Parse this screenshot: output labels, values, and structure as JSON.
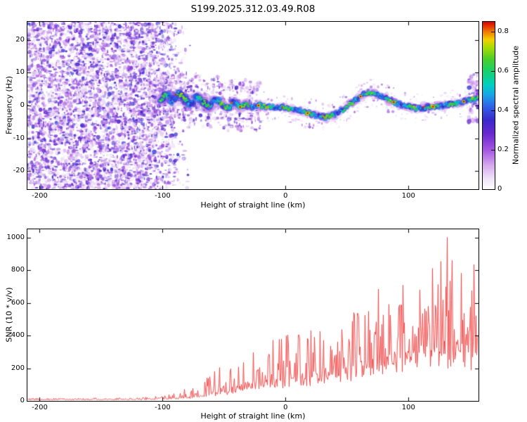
{
  "title": "S199.2025.312.03.49.R08",
  "colors": {
    "background": "#ffffff",
    "axis": "#000000",
    "snr_line": "#f13c3c"
  },
  "chart_data": [
    {
      "type": "heatmap",
      "title": "S199.2025.312.03.49.R08",
      "xlabel": "Height of straight line (km)",
      "ylabel": "Frequency (Hz)",
      "xlim": [
        -210,
        157
      ],
      "ylim": [
        -25.5,
        25.5
      ],
      "xticks": [
        {
          "v": -200,
          "label": "-200"
        },
        {
          "v": -100,
          "label": "-100"
        },
        {
          "v": 0,
          "label": "0"
        },
        {
          "v": 100,
          "label": "100"
        }
      ],
      "yticks": [
        {
          "v": 20,
          "label": "20"
        },
        {
          "v": 10,
          "label": "10"
        },
        {
          "v": 0,
          "label": "0"
        },
        {
          "v": -10,
          "label": "-10"
        },
        {
          "v": -20,
          "label": "-20"
        }
      ],
      "colorbar": {
        "label": "Normalized spectral amplitude",
        "range": [
          0,
          0.85
        ],
        "ticks": [
          {
            "v": 0,
            "label": "0"
          },
          {
            "v": 0.2,
            "label": "0.2"
          },
          {
            "v": 0.4,
            "label": "0.4"
          },
          {
            "v": 0.6,
            "label": "0.6"
          },
          {
            "v": 0.8,
            "label": "0.8"
          }
        ],
        "stops": [
          {
            "v": 0.0,
            "c": "#ffffff"
          },
          {
            "v": 0.05,
            "c": "#f0e6f8"
          },
          {
            "v": 0.12,
            "c": "#d5aaee"
          },
          {
            "v": 0.2,
            "c": "#a555e0"
          },
          {
            "v": 0.28,
            "c": "#6a28cf"
          },
          {
            "v": 0.35,
            "c": "#3b28cc"
          },
          {
            "v": 0.42,
            "c": "#2f62e8"
          },
          {
            "v": 0.48,
            "c": "#18a6e8"
          },
          {
            "v": 0.53,
            "c": "#00cfc0"
          },
          {
            "v": 0.6,
            "c": "#17d06a"
          },
          {
            "v": 0.66,
            "c": "#49cf2a"
          },
          {
            "v": 0.72,
            "c": "#a8dc00"
          },
          {
            "v": 0.76,
            "c": "#f2cf00"
          },
          {
            "v": 0.8,
            "c": "#f07800"
          },
          {
            "v": 0.85,
            "c": "#d80000"
          }
        ]
      },
      "noise_region": {
        "start": -210,
        "end": -76,
        "fade_start": -112
      },
      "signal_trace": {
        "heights": [
          -102,
          -97,
          -92,
          -87,
          -82,
          -77,
          -72,
          -67,
          -62,
          -57,
          -52,
          -47,
          -42,
          -37,
          -32,
          -27,
          -22,
          -17,
          -12,
          -7,
          -2,
          3,
          8,
          13,
          18,
          23,
          28,
          33,
          38,
          43,
          48,
          53,
          58,
          63,
          68,
          73,
          78,
          83,
          88,
          93,
          98,
          103,
          108,
          113,
          118,
          123,
          128,
          133,
          138,
          143,
          148,
          153,
          157
        ],
        "freqs": [
          1.5,
          3.5,
          1.0,
          4.0,
          2.0,
          0.0,
          3.0,
          1.0,
          -0.5,
          2.0,
          0.5,
          -1.0,
          1.5,
          -0.5,
          0.5,
          -0.5,
          0.0,
          -0.3,
          -0.5,
          -0.8,
          -0.5,
          -1.0,
          -1.2,
          -1.8,
          -2.3,
          -2.8,
          -3.3,
          -3.4,
          -3.0,
          -2.2,
          -1.0,
          0.5,
          2.0,
          3.3,
          3.8,
          3.5,
          2.8,
          2.0,
          1.0,
          0.3,
          -0.2,
          -0.6,
          -1.0,
          -0.8,
          -0.5,
          -0.2,
          0.0,
          0.3,
          0.6,
          1.0,
          1.5,
          2.0,
          2.3
        ]
      },
      "hot_spots": [
        -37,
        -22,
        18,
        61,
        88,
        120,
        145
      ],
      "signal_amplitude_range": [
        0.35,
        0.72
      ]
    },
    {
      "type": "line",
      "xlabel": "Height of straight line (km)",
      "ylabel": "SNR (10 * v/v)",
      "xlim": [
        -210,
        157
      ],
      "ylim": [
        0,
        1050
      ],
      "xticks": [
        {
          "v": -200,
          "label": "-200"
        },
        {
          "v": -100,
          "label": "-100"
        },
        {
          "v": 0,
          "label": "0"
        },
        {
          "v": 100,
          "label": "100"
        }
      ],
      "yticks": [
        {
          "v": 0,
          "label": "0"
        },
        {
          "v": 200,
          "label": "200"
        },
        {
          "v": 400,
          "label": "400"
        },
        {
          "v": 600,
          "label": "600"
        },
        {
          "v": 800,
          "label": "800"
        },
        {
          "v": 1000,
          "label": "1000"
        }
      ],
      "series": [
        {
          "name": "SNR",
          "envelope": {
            "heights": [
              -210,
              -150,
              -120,
              -100,
              -90,
              -80,
              -70,
              -60,
              -50,
              -40,
              -30,
              -20,
              -10,
              0,
              10,
              20,
              30,
              40,
              50,
              60,
              70,
              80,
              90,
              100,
              110,
              120,
              130,
              140,
              150,
              157
            ],
            "lo": [
              6,
              7,
              8,
              10,
              13,
              17,
              24,
              33,
              45,
              58,
              68,
              78,
              88,
              100,
              108,
              118,
              128,
              148,
              165,
              178,
              195,
              215,
              228,
              238,
              248,
              258,
              275,
              258,
              238,
              228
            ],
            "hi": [
              16,
              18,
              22,
              30,
              48,
              80,
              120,
              170,
              230,
              280,
              300,
              330,
              380,
              460,
              400,
              450,
              420,
              550,
              600,
              650,
              700,
              720,
              800,
              780,
              850,
              920,
              1010,
              950,
              900,
              880
            ]
          }
        }
      ]
    }
  ]
}
